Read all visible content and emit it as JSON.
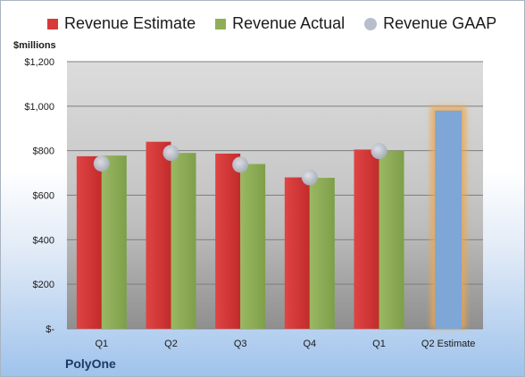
{
  "chart_data": {
    "type": "bar",
    "categories": [
      "Q1",
      "Q2",
      "Q3",
      "Q4",
      "Q1",
      "Q2 Estimate"
    ],
    "series": [
      {
        "name": "Revenue Estimate",
        "values": [
          775,
          840,
          787,
          680,
          805,
          null
        ],
        "color": "#d83a3a"
      },
      {
        "name": "Revenue Actual",
        "values": [
          778,
          790,
          740,
          678,
          800,
          null
        ],
        "color": "#8fae58"
      },
      {
        "name": "Revenue GAAP",
        "values": [
          742,
          790,
          737,
          680,
          798,
          null
        ],
        "color": "#b8bfcb"
      },
      {
        "name": "",
        "values": [
          null,
          null,
          null,
          null,
          null,
          980
        ],
        "color": "#7ea6d6"
      }
    ],
    "ylabel": "$millions",
    "ylim": [
      0,
      1200
    ],
    "yticks": [
      0,
      200,
      400,
      600,
      800,
      1000,
      1200
    ],
    "ytick_labels": [
      "$-",
      "$200",
      "$400",
      "$600",
      "$800",
      "$1,000",
      "$1,200"
    ],
    "grid": true,
    "legend_position": "top",
    "footer": "PolyOne"
  }
}
